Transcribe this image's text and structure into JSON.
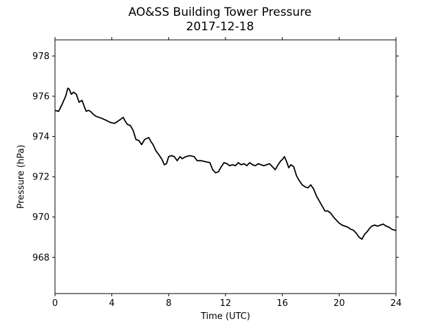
{
  "chart_data": {
    "type": "line",
    "title": "AO&SS Building Tower Pressure",
    "subtitle": "2017-12-18",
    "xlabel": "Time (UTC)",
    "ylabel": "Pressure (hPa)",
    "xlim": [
      0,
      24
    ],
    "ylim": [
      966.2,
      978.8
    ],
    "xticks": [
      0,
      4,
      8,
      12,
      16,
      20,
      24
    ],
    "yticks": [
      968,
      970,
      972,
      974,
      976,
      978
    ],
    "grid": false,
    "line_color": "#000000",
    "series": [
      {
        "x": [
          0,
          0.25,
          0.5,
          0.75,
          0.9,
          1.0,
          1.15,
          1.3,
          1.5,
          1.7,
          1.9,
          2.05,
          2.2,
          2.35,
          2.5,
          2.7,
          2.9,
          3.1,
          3.3,
          3.6,
          3.9,
          4.2,
          4.4,
          4.6,
          4.8,
          4.95,
          5.1,
          5.3,
          5.5,
          5.7,
          5.9,
          6.1,
          6.3,
          6.45,
          6.6,
          6.75,
          6.9,
          7.1,
          7.3,
          7.5,
          7.7,
          7.85,
          8.0,
          8.2,
          8.4,
          8.6,
          8.8,
          8.95,
          9.2,
          9.5,
          9.8,
          10.0,
          10.3,
          10.6,
          10.9,
          11.1,
          11.3,
          11.5,
          11.7,
          11.9,
          12.1,
          12.3,
          12.5,
          12.7,
          12.9,
          13.1,
          13.3,
          13.5,
          13.7,
          13.9,
          14.1,
          14.3,
          14.5,
          14.7,
          14.9,
          15.1,
          15.3,
          15.5,
          15.7,
          15.9,
          16.0,
          16.15,
          16.3,
          16.45,
          16.6,
          16.8,
          17.0,
          17.2,
          17.4,
          17.6,
          17.8,
          18.0,
          18.2,
          18.4,
          18.6,
          18.8,
          19.0,
          19.2,
          19.4,
          19.6,
          19.8,
          20.0,
          20.2,
          20.4,
          20.6,
          20.8,
          21.0,
          21.2,
          21.4,
          21.6,
          21.8,
          22.0,
          22.15,
          22.3,
          22.5,
          22.7,
          22.9,
          23.1,
          23.3,
          23.5,
          23.7,
          23.9,
          24.0
        ],
        "y": [
          975.3,
          975.25,
          975.6,
          976.0,
          976.4,
          976.35,
          976.1,
          976.2,
          976.1,
          975.7,
          975.8,
          975.5,
          975.25,
          975.3,
          975.25,
          975.1,
          975.0,
          974.95,
          974.9,
          974.8,
          974.7,
          974.65,
          974.75,
          974.85,
          974.95,
          974.75,
          974.6,
          974.55,
          974.3,
          973.85,
          973.8,
          973.6,
          973.85,
          973.9,
          973.95,
          973.75,
          973.6,
          973.3,
          973.1,
          972.9,
          972.6,
          972.65,
          973.0,
          973.05,
          973.0,
          972.8,
          973.0,
          972.9,
          973.0,
          973.05,
          973.0,
          972.8,
          972.8,
          972.75,
          972.7,
          972.35,
          972.2,
          972.25,
          972.5,
          972.7,
          972.65,
          972.55,
          972.6,
          972.55,
          972.7,
          972.6,
          972.65,
          972.55,
          972.7,
          972.6,
          972.55,
          972.65,
          972.6,
          972.55,
          972.6,
          972.65,
          972.5,
          972.35,
          972.6,
          972.8,
          972.85,
          973.0,
          972.75,
          972.45,
          972.6,
          972.5,
          972.05,
          971.8,
          971.6,
          971.5,
          971.45,
          971.6,
          971.4,
          971.05,
          970.8,
          970.55,
          970.3,
          970.3,
          970.2,
          970.0,
          969.85,
          969.7,
          969.6,
          969.55,
          969.5,
          969.4,
          969.35,
          969.2,
          969.0,
          968.9,
          969.15,
          969.3,
          969.45,
          969.55,
          969.6,
          969.55,
          969.6,
          969.65,
          969.55,
          969.5,
          969.4,
          969.35,
          969.35
        ]
      }
    ]
  }
}
